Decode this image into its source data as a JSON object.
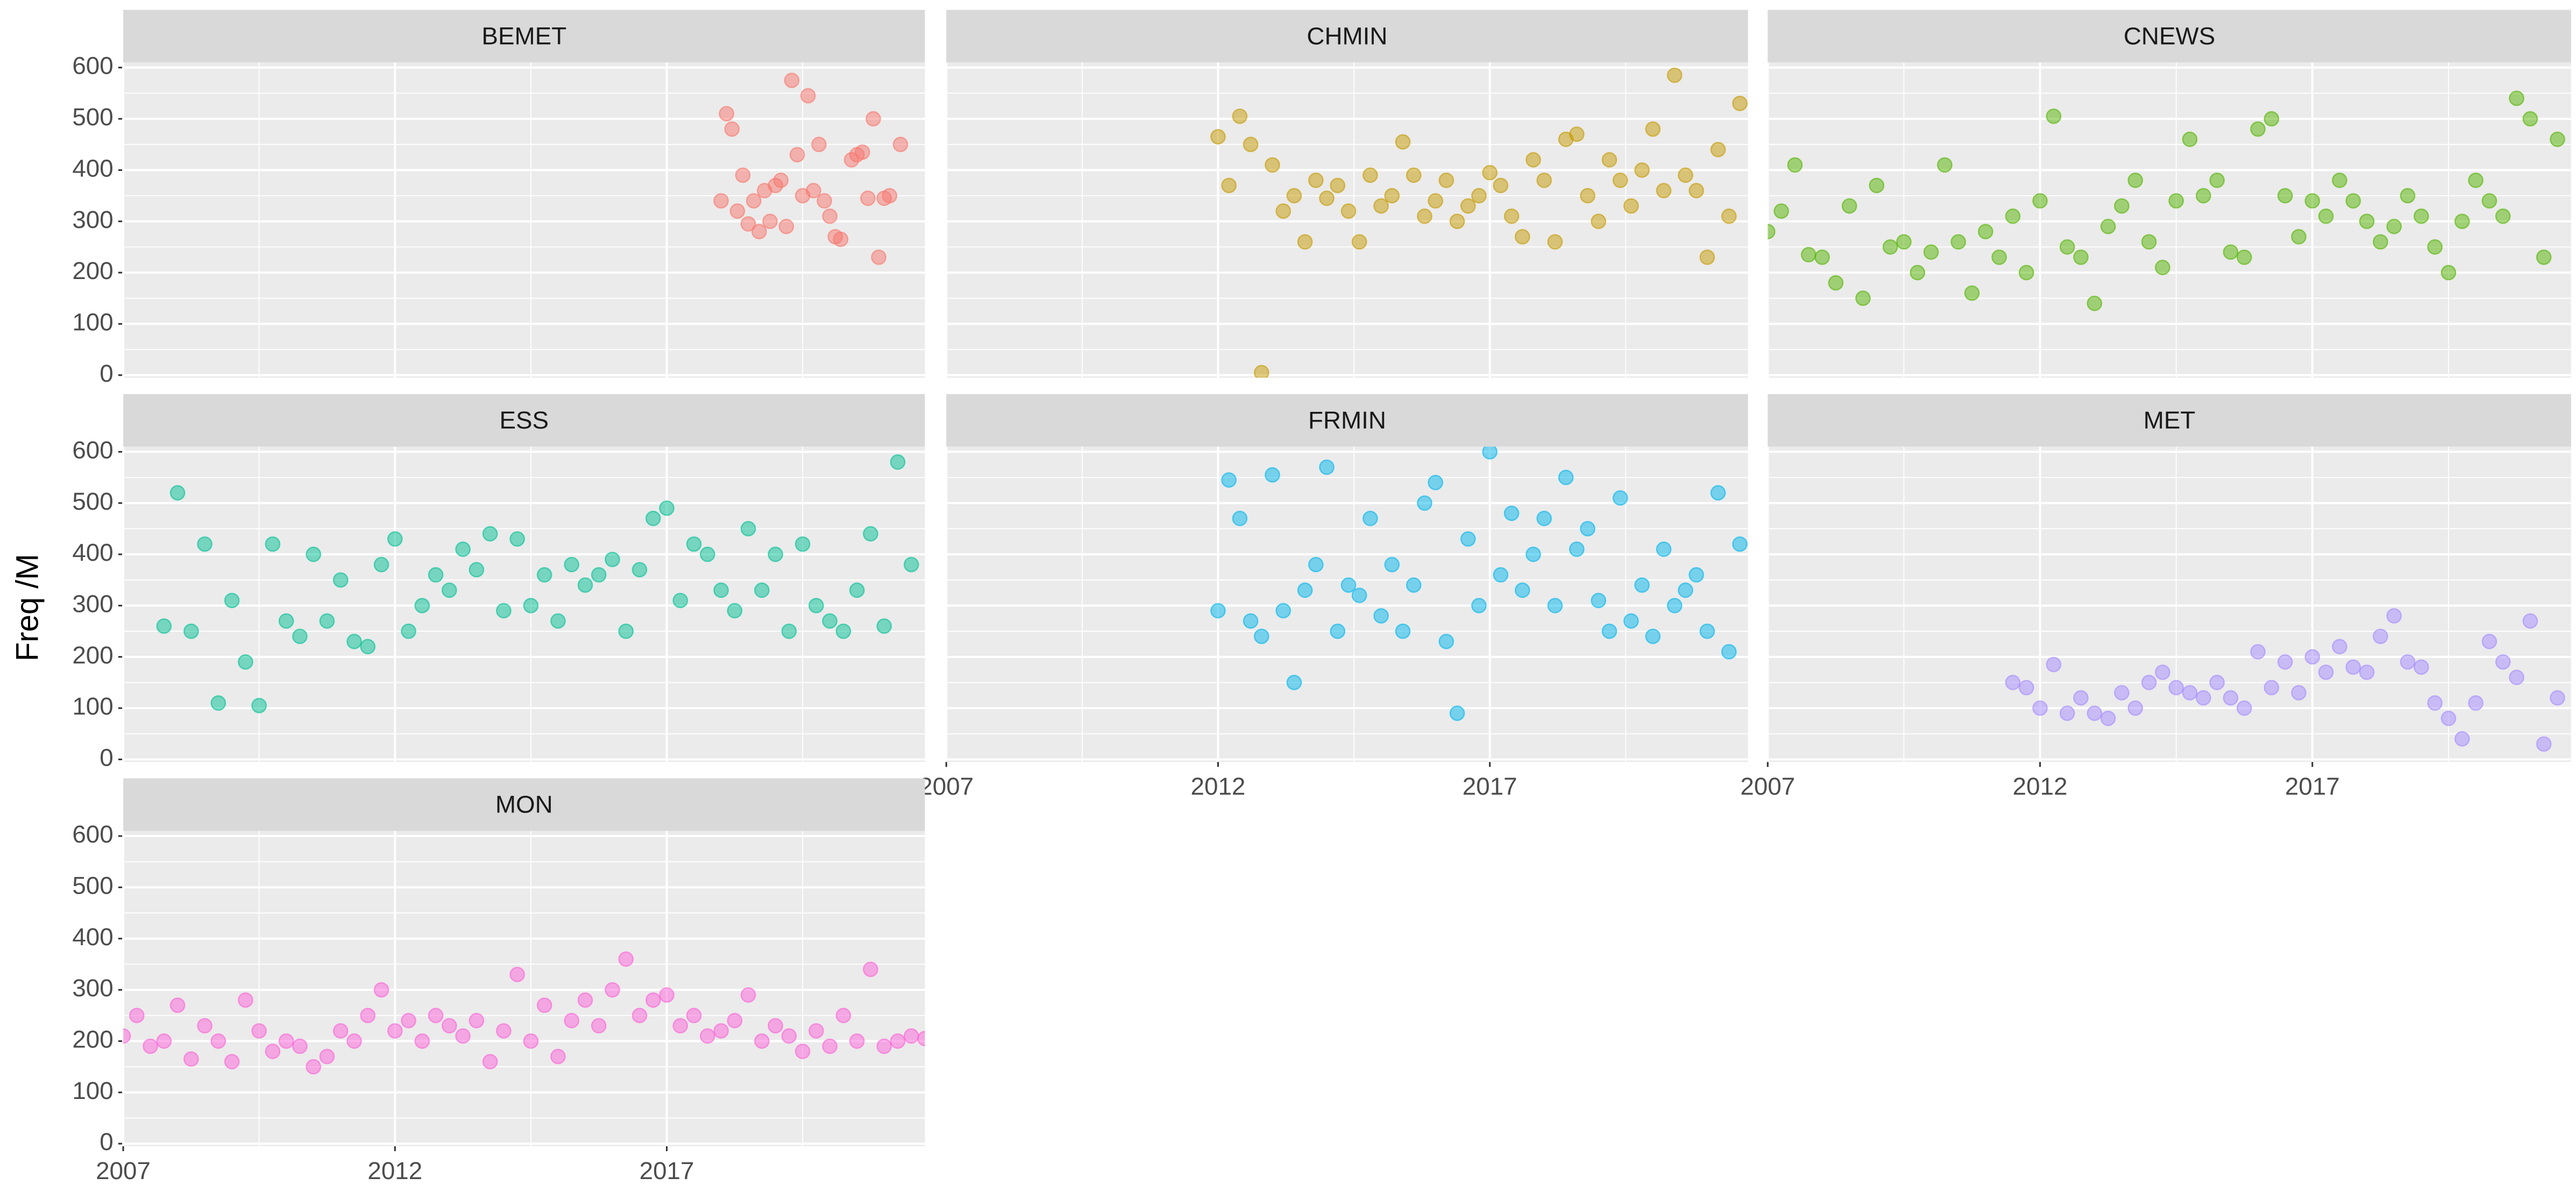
{
  "y_label": "Freq /M",
  "chart_data": [
    {
      "type": "scatter",
      "title": "BEMET",
      "color": "#F8766D",
      "xlim": [
        2007,
        2021.75
      ],
      "ylim": [
        -5,
        610
      ],
      "xticks": [
        2007,
        2012,
        2017
      ],
      "yticks": [
        0,
        100,
        200,
        300,
        400,
        500,
        600
      ],
      "grid": true,
      "x": [
        2018.0,
        2018.1,
        2018.2,
        2018.3,
        2018.4,
        2018.5,
        2018.6,
        2018.7,
        2018.8,
        2018.9,
        2019.0,
        2019.1,
        2019.2,
        2019.3,
        2019.4,
        2019.5,
        2019.6,
        2019.7,
        2019.8,
        2019.9,
        2020.0,
        2020.1,
        2020.2,
        2020.4,
        2020.5,
        2020.6,
        2020.7,
        2020.8,
        2020.9,
        2021.0,
        2021.1,
        2021.3
      ],
      "values": [
        340,
        510,
        480,
        320,
        390,
        295,
        340,
        280,
        360,
        300,
        370,
        380,
        290,
        575,
        430,
        350,
        545,
        360,
        450,
        340,
        310,
        270,
        265,
        420,
        430,
        435,
        345,
        500,
        230,
        345,
        350,
        450
      ]
    },
    {
      "type": "scatter",
      "title": "CHMIN",
      "color": "#C49A00",
      "xlim": [
        2007,
        2021.75
      ],
      "ylim": [
        -5,
        610
      ],
      "xticks": [
        2007,
        2012,
        2017
      ],
      "yticks": [
        0,
        100,
        200,
        300,
        400,
        500,
        600
      ],
      "grid": true,
      "x": [
        2012.0,
        2012.2,
        2012.4,
        2012.6,
        2012.8,
        2013.0,
        2013.2,
        2013.4,
        2013.6,
        2013.8,
        2014.0,
        2014.2,
        2014.4,
        2014.6,
        2014.8,
        2015.0,
        2015.2,
        2015.4,
        2015.6,
        2015.8,
        2016.0,
        2016.2,
        2016.4,
        2016.6,
        2016.8,
        2017.0,
        2017.2,
        2017.4,
        2017.6,
        2017.8,
        2018.0,
        2018.2,
        2018.4,
        2018.6,
        2018.8,
        2019.0,
        2019.2,
        2019.4,
        2019.6,
        2019.8,
        2020.0,
        2020.2,
        2020.4,
        2020.6,
        2020.8,
        2021.0,
        2021.2,
        2021.4,
        2021.6
      ],
      "values": [
        465,
        370,
        505,
        450,
        5,
        410,
        320,
        350,
        260,
        380,
        345,
        370,
        320,
        260,
        390,
        330,
        350,
        455,
        390,
        310,
        340,
        380,
        300,
        330,
        350,
        395,
        370,
        310,
        270,
        420,
        380,
        260,
        460,
        470,
        350,
        300,
        420,
        380,
        330,
        400,
        480,
        360,
        585,
        390,
        360,
        230,
        440,
        310,
        530
      ]
    },
    {
      "type": "scatter",
      "title": "CNEWS",
      "color": "#53B400",
      "xlim": [
        2007,
        2021.75
      ],
      "ylim": [
        -5,
        610
      ],
      "xticks": [
        2007,
        2012,
        2017
      ],
      "yticks": [
        0,
        100,
        200,
        300,
        400,
        500,
        600
      ],
      "grid": true,
      "x": [
        2007.0,
        2007.25,
        2007.5,
        2007.75,
        2008.0,
        2008.25,
        2008.5,
        2008.75,
        2009.0,
        2009.25,
        2009.5,
        2009.75,
        2010.0,
        2010.25,
        2010.5,
        2010.75,
        2011.0,
        2011.25,
        2011.5,
        2011.75,
        2012.0,
        2012.25,
        2012.5,
        2012.75,
        2013.0,
        2013.25,
        2013.5,
        2013.75,
        2014.0,
        2014.25,
        2014.5,
        2014.75,
        2015.0,
        2015.25,
        2015.5,
        2015.75,
        2016.0,
        2016.25,
        2016.5,
        2016.75,
        2017.0,
        2017.25,
        2017.5,
        2017.75,
        2018.0,
        2018.25,
        2018.5,
        2018.75,
        2019.0,
        2019.25,
        2019.5,
        2019.75,
        2020.0,
        2020.25,
        2020.5,
        2020.75,
        2021.0,
        2021.25,
        2021.5
      ],
      "values": [
        280,
        320,
        410,
        235,
        230,
        180,
        330,
        150,
        370,
        250,
        260,
        200,
        240,
        410,
        260,
        160,
        280,
        230,
        310,
        200,
        340,
        505,
        250,
        230,
        140,
        290,
        330,
        380,
        260,
        210,
        340,
        460,
        350,
        380,
        240,
        230,
        480,
        500,
        350,
        270,
        340,
        310,
        380,
        340,
        300,
        260,
        290,
        350,
        310,
        250,
        200,
        300,
        380,
        340,
        310,
        540,
        500,
        230,
        460
      ]
    },
    {
      "type": "scatter",
      "title": "ESS",
      "color": "#00C094",
      "xlim": [
        2007,
        2021.75
      ],
      "ylim": [
        -5,
        610
      ],
      "xticks": [
        2007,
        2012,
        2017
      ],
      "yticks": [
        0,
        100,
        200,
        300,
        400,
        500,
        600
      ],
      "grid": true,
      "x": [
        2007.75,
        2008.0,
        2008.25,
        2008.5,
        2008.75,
        2009.0,
        2009.25,
        2009.5,
        2009.75,
        2010.0,
        2010.25,
        2010.5,
        2010.75,
        2011.0,
        2011.25,
        2011.5,
        2011.75,
        2012.0,
        2012.25,
        2012.5,
        2012.75,
        2013.0,
        2013.25,
        2013.5,
        2013.75,
        2014.0,
        2014.25,
        2014.5,
        2014.75,
        2015.0,
        2015.25,
        2015.5,
        2015.75,
        2016.0,
        2016.25,
        2016.5,
        2016.75,
        2017.0,
        2017.25,
        2017.5,
        2017.75,
        2018.0,
        2018.25,
        2018.5,
        2018.75,
        2019.0,
        2019.25,
        2019.5,
        2019.75,
        2020.0,
        2020.25,
        2020.5,
        2020.75,
        2021.0,
        2021.25,
        2021.5
      ],
      "values": [
        260,
        520,
        250,
        420,
        110,
        310,
        190,
        105,
        420,
        270,
        240,
        400,
        270,
        350,
        230,
        220,
        380,
        430,
        250,
        300,
        360,
        330,
        410,
        370,
        440,
        290,
        430,
        300,
        360,
        270,
        380,
        340,
        360,
        390,
        250,
        370,
        470,
        490,
        310,
        420,
        400,
        330,
        290,
        450,
        330,
        400,
        250,
        420,
        300,
        270,
        250,
        330,
        440,
        260,
        580,
        380
      ]
    },
    {
      "type": "scatter",
      "title": "FRMIN",
      "color": "#00B6EB",
      "xlim": [
        2007,
        2021.75
      ],
      "ylim": [
        -5,
        610
      ],
      "xticks": [
        2007,
        2012,
        2017
      ],
      "yticks": [
        0,
        100,
        200,
        300,
        400,
        500,
        600
      ],
      "grid": true,
      "x": [
        2012.0,
        2012.2,
        2012.4,
        2012.6,
        2012.8,
        2013.0,
        2013.2,
        2013.4,
        2013.6,
        2013.8,
        2014.0,
        2014.2,
        2014.4,
        2014.6,
        2014.8,
        2015.0,
        2015.2,
        2015.4,
        2015.6,
        2015.8,
        2016.0,
        2016.2,
        2016.4,
        2016.6,
        2016.8,
        2017.0,
        2017.2,
        2017.4,
        2017.6,
        2017.8,
        2018.0,
        2018.2,
        2018.4,
        2018.6,
        2018.8,
        2019.0,
        2019.2,
        2019.4,
        2019.6,
        2019.8,
        2020.0,
        2020.2,
        2020.4,
        2020.6,
        2020.8,
        2021.0,
        2021.2,
        2021.4,
        2021.6
      ],
      "values": [
        290,
        545,
        470,
        270,
        240,
        555,
        290,
        150,
        330,
        380,
        570,
        250,
        340,
        320,
        470,
        280,
        380,
        250,
        340,
        500,
        540,
        230,
        90,
        430,
        300,
        600,
        360,
        480,
        330,
        400,
        470,
        300,
        550,
        410,
        450,
        310,
        250,
        510,
        270,
        340,
        240,
        410,
        300,
        330,
        360,
        250,
        520,
        210,
        420
      ]
    },
    {
      "type": "scatter",
      "title": "MET",
      "color": "#A58AFF",
      "xlim": [
        2007,
        2021.75
      ],
      "ylim": [
        -5,
        610
      ],
      "xticks": [
        2007,
        2012,
        2017
      ],
      "yticks": [
        0,
        100,
        200,
        300,
        400,
        500,
        600
      ],
      "grid": true,
      "x": [
        2011.5,
        2011.75,
        2012.0,
        2012.25,
        2012.5,
        2012.75,
        2013.0,
        2013.25,
        2013.5,
        2013.75,
        2014.0,
        2014.25,
        2014.5,
        2014.75,
        2015.0,
        2015.25,
        2015.5,
        2015.75,
        2016.0,
        2016.25,
        2016.5,
        2016.75,
        2017.0,
        2017.25,
        2017.5,
        2017.75,
        2018.0,
        2018.25,
        2018.5,
        2018.75,
        2019.0,
        2019.25,
        2019.5,
        2019.75,
        2020.0,
        2020.25,
        2020.5,
        2020.75,
        2021.0,
        2021.25,
        2021.5
      ],
      "values": [
        150,
        140,
        100,
        185,
        90,
        120,
        90,
        80,
        130,
        100,
        150,
        170,
        140,
        130,
        120,
        150,
        120,
        100,
        210,
        140,
        190,
        130,
        200,
        170,
        220,
        180,
        170,
        240,
        280,
        190,
        180,
        110,
        80,
        40,
        110,
        230,
        190,
        160,
        270,
        30,
        120
      ]
    },
    {
      "type": "scatter",
      "title": "MON",
      "color": "#FB61D7",
      "xlim": [
        2007,
        2021.75
      ],
      "ylim": [
        -5,
        610
      ],
      "xticks": [
        2007,
        2012,
        2017
      ],
      "yticks": [
        0,
        100,
        200,
        300,
        400,
        500,
        600
      ],
      "grid": true,
      "x": [
        2007.0,
        2007.25,
        2007.5,
        2007.75,
        2008.0,
        2008.25,
        2008.5,
        2008.75,
        2009.0,
        2009.25,
        2009.5,
        2009.75,
        2010.0,
        2010.25,
        2010.5,
        2010.75,
        2011.0,
        2011.25,
        2011.5,
        2011.75,
        2012.0,
        2012.25,
        2012.5,
        2012.75,
        2013.0,
        2013.25,
        2013.5,
        2013.75,
        2014.0,
        2014.25,
        2014.5,
        2014.75,
        2015.0,
        2015.25,
        2015.5,
        2015.75,
        2016.0,
        2016.25,
        2016.5,
        2016.75,
        2017.0,
        2017.25,
        2017.5,
        2017.75,
        2018.0,
        2018.25,
        2018.5,
        2018.75,
        2019.0,
        2019.25,
        2019.5,
        2019.75,
        2020.0,
        2020.25,
        2020.5,
        2020.75,
        2021.0,
        2021.25,
        2021.5,
        2021.75
      ],
      "values": [
        210,
        250,
        190,
        200,
        270,
        165,
        230,
        200,
        160,
        280,
        220,
        180,
        200,
        190,
        150,
        170,
        220,
        200,
        250,
        300,
        220,
        240,
        200,
        250,
        230,
        210,
        240,
        160,
        220,
        330,
        200,
        270,
        170,
        240,
        280,
        230,
        300,
        360,
        250,
        280,
        290,
        230,
        250,
        210,
        220,
        240,
        290,
        200,
        230,
        210,
        180,
        220,
        190,
        250,
        200,
        340,
        190,
        200,
        210,
        205
      ]
    }
  ]
}
